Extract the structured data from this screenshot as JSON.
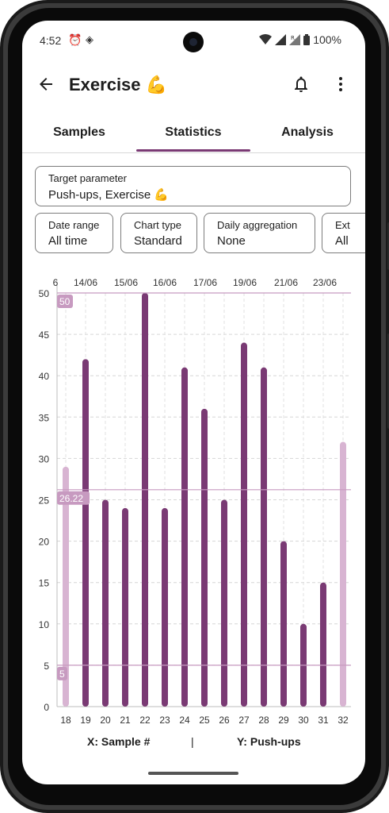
{
  "status": {
    "time": "4:52",
    "battery": "100%"
  },
  "appbar": {
    "title": "Exercise 💪"
  },
  "tabs": [
    {
      "label": "Samples"
    },
    {
      "label": "Statistics"
    },
    {
      "label": "Analysis"
    }
  ],
  "fields": {
    "target": {
      "label": "Target parameter",
      "value": "Push-ups, Exercise 💪"
    },
    "date_range": {
      "label": "Date range",
      "value": "All time"
    },
    "chart_type": {
      "label": "Chart type",
      "value": "Standard"
    },
    "daily_aggregation": {
      "label": "Daily aggregation",
      "value": "None"
    },
    "extra": {
      "label": "Ext",
      "value": "All"
    }
  },
  "chart_data": {
    "type": "bar",
    "categories": [
      "18",
      "19",
      "20",
      "21",
      "22",
      "23",
      "24",
      "25",
      "26",
      "27",
      "28",
      "29",
      "30",
      "31",
      "32"
    ],
    "values": [
      29,
      42,
      25,
      24,
      50,
      24,
      41,
      36,
      25,
      44,
      41,
      20,
      10,
      15,
      32
    ],
    "faded_categories": [
      "18",
      "32"
    ],
    "yticks": [
      0,
      5,
      10,
      15,
      20,
      25,
      30,
      35,
      40,
      45,
      50
    ],
    "ylim": [
      0,
      50
    ],
    "top_date_labels": [
      "6",
      "14/06",
      "15/06",
      "16/06",
      "17/06",
      "19/06",
      "21/06",
      "23/06"
    ],
    "reference_lines": [
      {
        "label": "50",
        "value": 50
      },
      {
        "label": "26.22",
        "value": 26.22
      },
      {
        "label": "5",
        "value": 5
      }
    ],
    "xlabel": "X: Sample #",
    "ylabel": "Y: Push-ups",
    "separator": "|",
    "bar_color": "#7a3a74",
    "faded_color": "#d8b4d2",
    "ref_color": "#c79ac0"
  }
}
